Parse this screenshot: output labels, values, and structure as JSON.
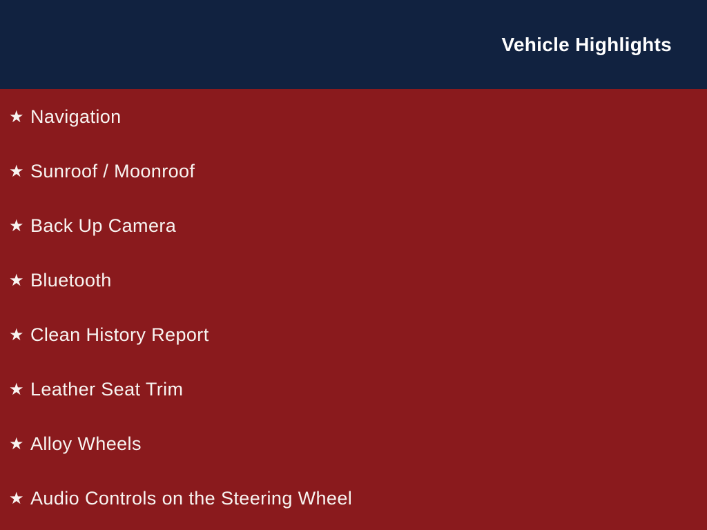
{
  "header": {
    "title": "Vehicle Highlights"
  },
  "list": {
    "bullet_glyph": "★",
    "items": [
      {
        "label": "Navigation"
      },
      {
        "label": "Sunroof / Moonroof"
      },
      {
        "label": "Back Up Camera"
      },
      {
        "label": "Bluetooth"
      },
      {
        "label": "Clean History Report"
      },
      {
        "label": "Leather Seat Trim"
      },
      {
        "label": "Alloy Wheels"
      },
      {
        "label": "Audio Controls on the Steering Wheel"
      }
    ]
  },
  "colors": {
    "header_bg": "#112240",
    "body_bg": "#8a1a1d",
    "title_color": "#ffffff",
    "item_color": "#f8f4f1"
  }
}
